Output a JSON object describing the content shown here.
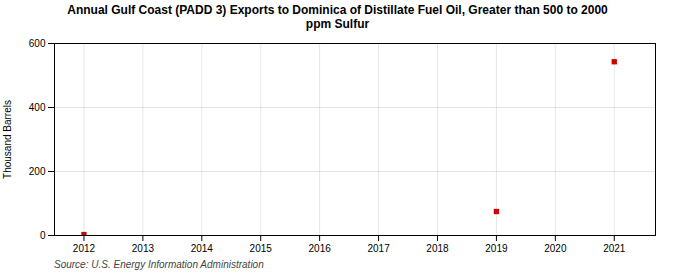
{
  "chart_data": {
    "type": "scatter",
    "title": "Annual Gulf Coast (PADD 3) Exports to Dominica of Distillate Fuel Oil, Greater than 500 to 2000\nppm Sulfur",
    "ylabel": "Thousand Barrels",
    "annotation": "Source: U.S. Energy Information Administration",
    "x": [
      2012,
      2019,
      2021
    ],
    "values": [
      3,
      75,
      543
    ],
    "color": "#cc0000",
    "marker": "square",
    "xlim": [
      2011.5,
      2021.7
    ],
    "xticks": [
      2012,
      2013,
      2014,
      2015,
      2016,
      2017,
      2018,
      2019,
      2020,
      2021
    ],
    "ylim": [
      0,
      600
    ],
    "yticks": [
      0,
      200,
      400,
      600
    ],
    "grid": true
  }
}
